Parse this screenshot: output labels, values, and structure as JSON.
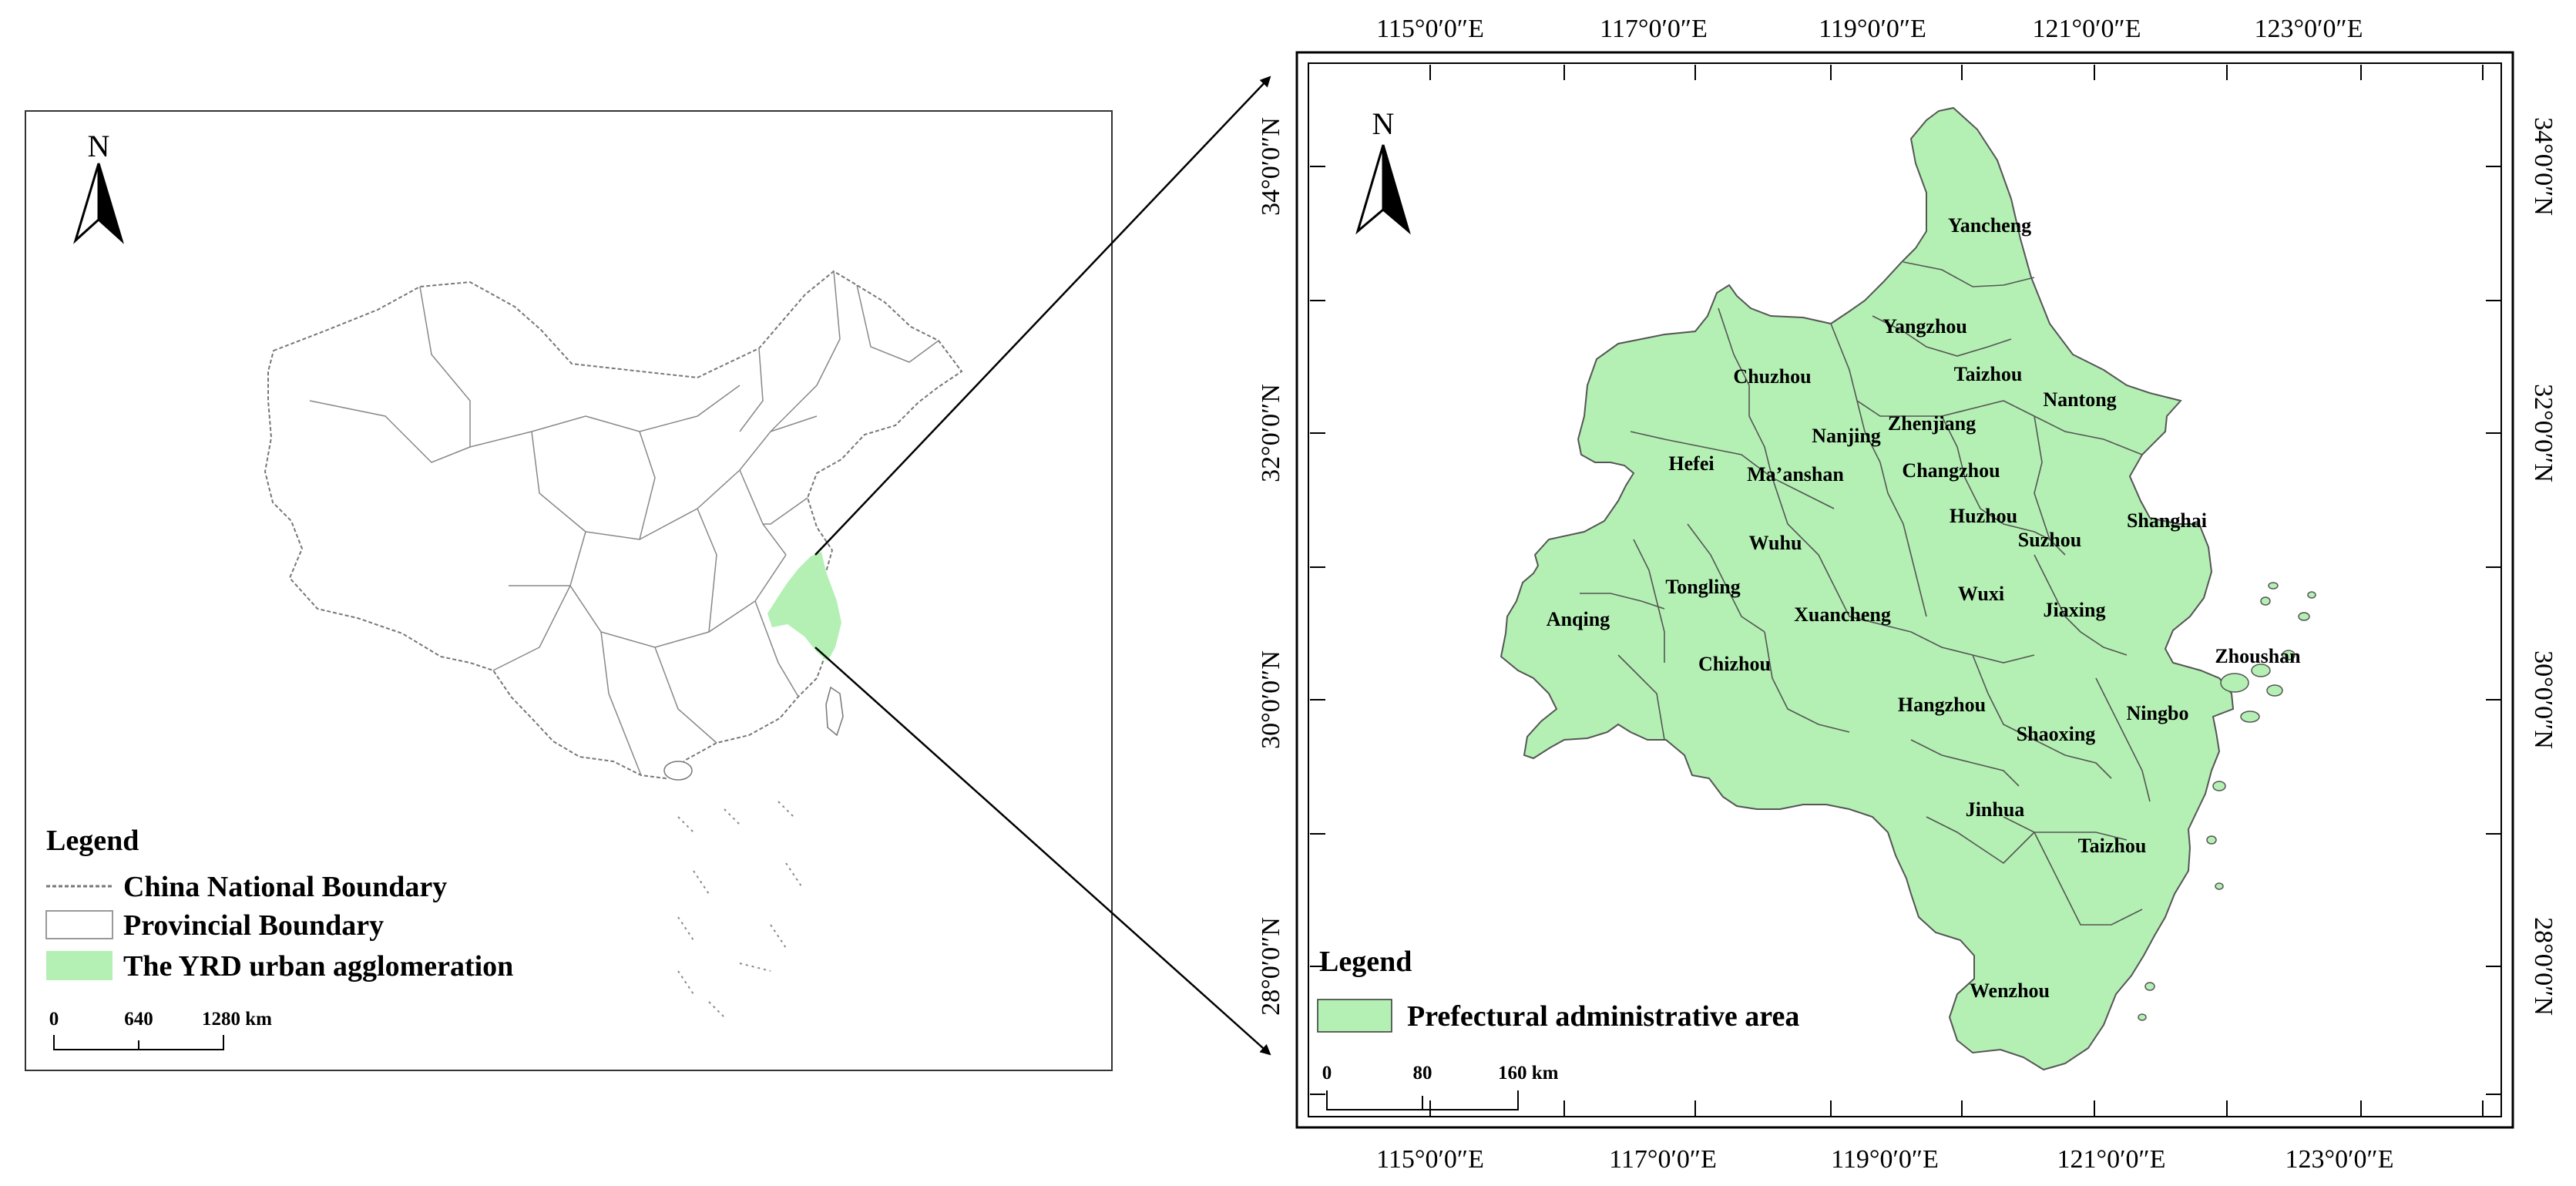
{
  "overview_map": {
    "north_label": "N",
    "legend": {
      "title": "Legend",
      "items": [
        {
          "label": "China National Boundary",
          "symbol": "dashed-line"
        },
        {
          "label": "Provincial Boundary",
          "symbol": "white-box"
        },
        {
          "label": "The YRD urban agglomeration",
          "symbol": "green-box"
        }
      ]
    },
    "scale_bar": {
      "ticks": [
        "0",
        "640",
        "1280 km"
      ]
    }
  },
  "detail_map": {
    "north_label": "N",
    "top_lon_labels": [
      "115°0′0″E",
      "117°0′0″E",
      "119°0′0″E",
      "121°0′0″E",
      "123°0′0″E"
    ],
    "bottom_lon_labels": [
      "115°0′0″E",
      "117°0′0″E",
      "119°0′0″E",
      "121°0′0″E",
      "123°0′0″E"
    ],
    "left_lat_labels": [
      "34°0′0″N",
      "32°0′0″N",
      "30°0′0″N",
      "28°0′0″N"
    ],
    "right_lat_labels": [
      "34°0′0″N",
      "32°0′0″N",
      "30°0′0″N",
      "28°0′0″N"
    ],
    "cities": [
      "Yancheng",
      "Yangzhou",
      "Taizhou",
      "Nantong",
      "Chuzhou",
      "Nanjing",
      "Zhenjiang",
      "Hefei",
      "Ma’anshan",
      "Changzhou",
      "Shanghai",
      "Huzhou",
      "Suzhou",
      "Wuhu",
      "Tongling",
      "Wuxi",
      "Anqing",
      "Xuancheng",
      "Jiaxing",
      "Chizhou",
      "Zhoushan",
      "Hangzhou",
      "Ningbo",
      "Shaoxing",
      "Jinhua",
      "Taizhou",
      "Wenzhou"
    ],
    "legend": {
      "title": "Legend",
      "items": [
        {
          "label": "Prefectural administrative area",
          "symbol": "green-box"
        }
      ]
    },
    "scale_bar": {
      "ticks": [
        "0",
        "80",
        "160 km"
      ]
    }
  },
  "colors": {
    "region_fill": "#b4f0b4",
    "outline": "#555555",
    "frame": "#000000"
  }
}
